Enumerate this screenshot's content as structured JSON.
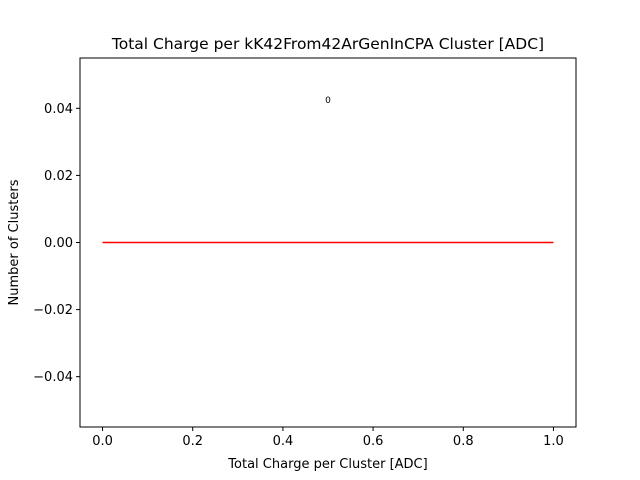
{
  "chart_data": {
    "type": "line",
    "title": "Total Charge per kK42From42ArGenInCPA Cluster [ADC]",
    "xlabel": "Total Charge per Cluster [ADC]",
    "ylabel": "Number of Clusters",
    "xlim": [
      -0.05,
      1.05
    ],
    "ylim": [
      -0.055,
      0.055
    ],
    "xticks": [
      0.0,
      0.2,
      0.4,
      0.6,
      0.8,
      1.0
    ],
    "xtick_labels": [
      "0.0",
      "0.2",
      "0.4",
      "0.6",
      "0.8",
      "1.0"
    ],
    "yticks": [
      0.04,
      0.02,
      0.0,
      -0.02,
      -0.04
    ],
    "ytick_labels": [
      "0.04",
      "0.02",
      "0.00",
      "−0.02",
      "−0.04"
    ],
    "grid": false,
    "series": [
      {
        "color": "#ff0000",
        "x": [
          0.0,
          1.0
        ],
        "y": [
          0.0,
          0.0
        ]
      }
    ],
    "annotations": [
      {
        "text": "0",
        "x": 0.5,
        "y": 0.0425
      }
    ]
  }
}
